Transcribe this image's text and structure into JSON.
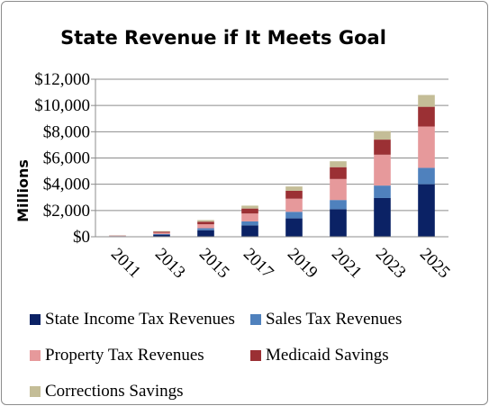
{
  "chart_data": {
    "type": "bar",
    "stacked": true,
    "title": "State Revenue if It Meets Goal",
    "xlabel": "",
    "ylabel": "Millions",
    "ylim": [
      0,
      12000
    ],
    "yticks": [
      0,
      2000,
      4000,
      6000,
      8000,
      10000,
      12000
    ],
    "ytick_labels": [
      "$0",
      "$2,000",
      "$4,000",
      "$6,000",
      "$8,000",
      "$10,000",
      "$12,000"
    ],
    "categories": [
      "2011",
      "2013",
      "2015",
      "2017",
      "2019",
      "2021",
      "2023",
      "2025"
    ],
    "legend_position": "bottom",
    "series": [
      {
        "name": "State Income Tax Revenues",
        "color": "#0b2265",
        "values": [
          40,
          160,
          500,
          870,
          1400,
          2100,
          2950,
          4000
        ]
      },
      {
        "name": "Sales Tax Revenues",
        "color": "#4f81bd",
        "values": [
          10,
          50,
          150,
          300,
          500,
          700,
          950,
          1250
        ]
      },
      {
        "name": "Property Tax Revenues",
        "color": "#e6999b",
        "values": [
          20,
          100,
          300,
          600,
          1000,
          1600,
          2350,
          3150
        ]
      },
      {
        "name": "Medicaid Savings",
        "color": "#9b3034",
        "values": [
          20,
          80,
          200,
          380,
          600,
          900,
          1150,
          1500
        ]
      },
      {
        "name": "Corrections Savings",
        "color": "#c4bd97",
        "values": [
          10,
          40,
          120,
          220,
          330,
          450,
          650,
          900
        ]
      }
    ]
  }
}
